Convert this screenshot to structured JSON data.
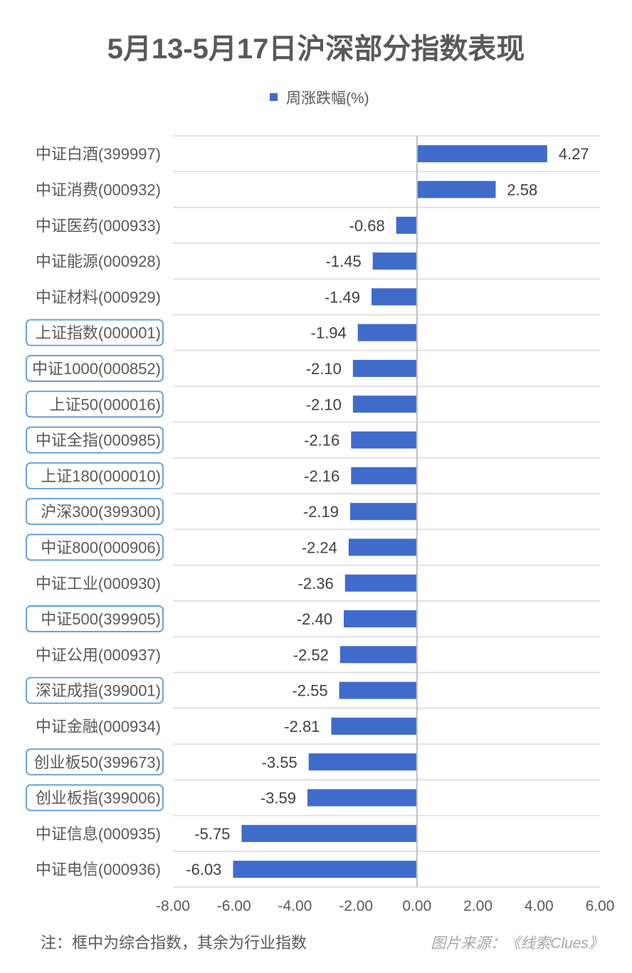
{
  "title": "5月13-5月17日沪深部分指数表现",
  "note": "注：框中为综合指数，其余为行业指数",
  "source": "图片来源：《线索Clues》",
  "colors": {
    "bar": "#3f6bcb",
    "grid": "#d9d9d9",
    "box": "#5b9bd5",
    "axis": "#bfbfbf"
  },
  "chart_data": {
    "type": "bar",
    "orientation": "horizontal",
    "legend": {
      "position": "top",
      "entries": [
        "周涨跌幅(%)"
      ]
    },
    "grid": true,
    "xlim": [
      -8.0,
      6.0
    ],
    "xticks": [
      "-8.00",
      "-6.00",
      "-4.00",
      "-2.00",
      "0.00",
      "2.00",
      "4.00",
      "6.00"
    ],
    "xtick_values": [
      -8,
      -6,
      -4,
      -2,
      0,
      2,
      4,
      6
    ],
    "series": [
      {
        "name": "周涨跌幅(%)",
        "values": [
          4.27,
          2.58,
          -0.68,
          -1.45,
          -1.49,
          -1.94,
          -2.1,
          -2.1,
          -2.16,
          -2.16,
          -2.19,
          -2.24,
          -2.36,
          -2.4,
          -2.52,
          -2.55,
          -2.81,
          -3.55,
          -3.59,
          -5.75,
          -6.03
        ]
      }
    ],
    "value_labels": [
      "4.27",
      "2.58",
      "-0.68",
      "-1.45",
      "-1.49",
      "-1.94",
      "-2.10",
      "-2.10",
      "-2.16",
      "-2.16",
      "-2.19",
      "-2.24",
      "-2.36",
      "-2.40",
      "-2.52",
      "-2.55",
      "-2.81",
      "-3.55",
      "-3.59",
      "-5.75",
      "-6.03"
    ],
    "categories": [
      "中证白酒(399997)",
      "中证消费(000932)",
      "中证医药(000933)",
      "中证能源(000928)",
      "中证材料(000929)",
      "上证指数(000001)",
      "中证1000(000852)",
      "上证50(000016)",
      "中证全指(000985)",
      "上证180(000010)",
      "沪深300(399300)",
      "中证800(000906)",
      "中证工业(000930)",
      "中证500(399905)",
      "中证公用(000937)",
      "深证成指(399001)",
      "中证金融(000934)",
      "创业板50(399673)",
      "创业板指(399006)",
      "中证信息(000935)",
      "中证电信(000936)"
    ],
    "boxed": [
      false,
      false,
      false,
      false,
      false,
      true,
      true,
      true,
      true,
      true,
      true,
      true,
      false,
      true,
      false,
      true,
      false,
      true,
      true,
      false,
      false
    ]
  }
}
